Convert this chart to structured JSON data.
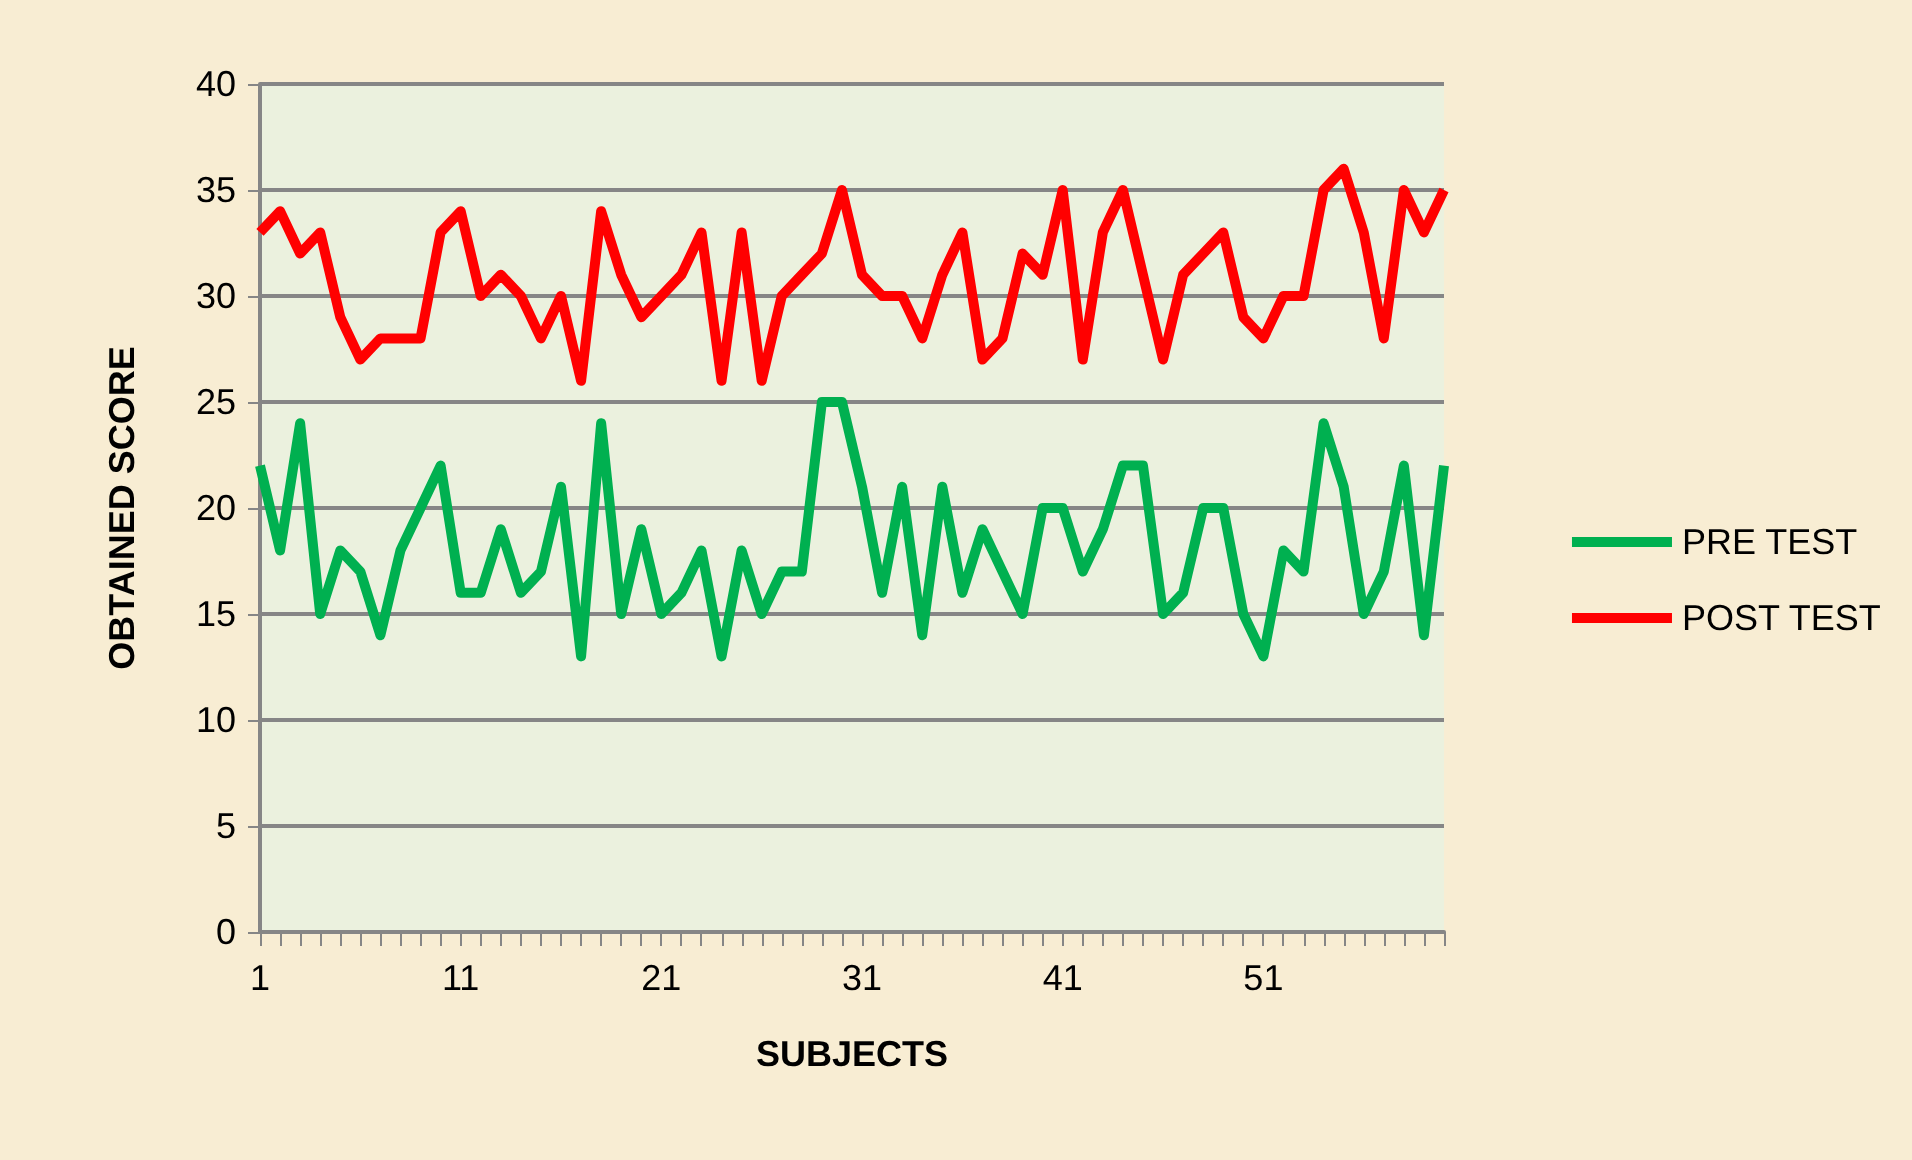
{
  "chart_data": {
    "type": "line",
    "xlabel": "SUBJECTS",
    "ylabel": "OBTAINED SCORE",
    "categories": [
      "1",
      null,
      null,
      null,
      null,
      null,
      null,
      null,
      null,
      null,
      "11",
      null,
      null,
      null,
      null,
      null,
      null,
      null,
      null,
      null,
      "21",
      null,
      null,
      null,
      null,
      null,
      null,
      null,
      null,
      null,
      "31",
      null,
      null,
      null,
      null,
      null,
      null,
      null,
      null,
      null,
      "41",
      null,
      null,
      null,
      null,
      null,
      null,
      null,
      null,
      null,
      "51",
      null,
      null,
      null,
      null,
      null,
      null,
      null,
      null,
      null
    ],
    "series": [
      {
        "name": "PRE TEST",
        "color": "#00b050",
        "values": [
          22,
          18,
          24,
          15,
          18,
          17,
          14,
          18,
          20,
          22,
          16,
          16,
          19,
          16,
          17,
          21,
          13,
          24,
          15,
          19,
          15,
          16,
          18,
          13,
          18,
          15,
          17,
          17,
          25,
          25,
          21,
          16,
          21,
          14,
          21,
          16,
          19,
          17,
          15,
          20,
          20,
          17,
          19,
          22,
          22,
          15,
          16,
          20,
          20,
          15,
          13,
          18,
          17,
          24,
          21,
          15,
          17,
          22,
          14,
          22
        ]
      },
      {
        "name": "POST TEST",
        "color": "#ff0000",
        "values": [
          33,
          34,
          32,
          33,
          29,
          27,
          28,
          28,
          28,
          33,
          34,
          30,
          31,
          30,
          28,
          30,
          26,
          34,
          31,
          29,
          30,
          31,
          33,
          26,
          33,
          26,
          30,
          31,
          32,
          35,
          31,
          30,
          30,
          28,
          31,
          33,
          27,
          28,
          32,
          31,
          35,
          27,
          33,
          35,
          31,
          27,
          31,
          32,
          33,
          29,
          28,
          30,
          30,
          35,
          36,
          33,
          28,
          35,
          33,
          35
        ]
      }
    ],
    "ylim": [
      0,
      40
    ],
    "yticks": [
      0,
      5,
      10,
      15,
      20,
      25,
      30,
      35,
      40
    ],
    "grid": "y",
    "legend": "right",
    "marker": "none",
    "line_style": "solid"
  }
}
